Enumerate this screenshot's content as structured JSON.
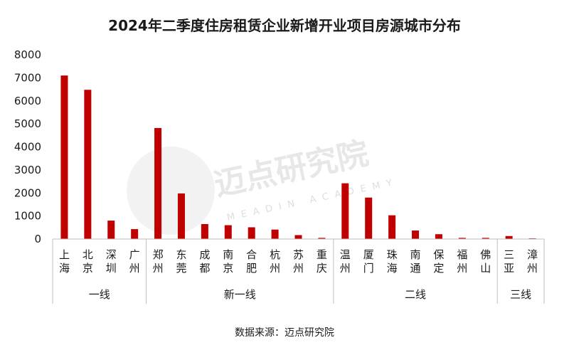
{
  "chart_data": {
    "type": "bar",
    "title": "2024年二季度住房租赁企业新增开业项目房源城市分布",
    "categories": [
      "上海",
      "北京",
      "深圳",
      "广州",
      "郑州",
      "东莞",
      "成都",
      "南京",
      "合肥",
      "杭州",
      "苏州",
      "重庆",
      "温州",
      "厦门",
      "珠海",
      "南通",
      "保定",
      "福州",
      "佛山",
      "三亚",
      "漳州"
    ],
    "values": [
      7100,
      6480,
      800,
      430,
      4820,
      1980,
      650,
      600,
      510,
      410,
      170,
      50,
      2420,
      1800,
      1030,
      370,
      210,
      50,
      50,
      130,
      30
    ],
    "groups": [
      {
        "label": "一线",
        "start": 0,
        "end": 3
      },
      {
        "label": "新一线",
        "start": 4,
        "end": 11
      },
      {
        "label": "二线",
        "start": 12,
        "end": 18
      },
      {
        "label": "三线",
        "start": 19,
        "end": 20
      }
    ],
    "ylim": [
      0,
      8000
    ],
    "yticks": [
      0,
      1000,
      2000,
      3000,
      4000,
      5000,
      6000,
      7000,
      8000
    ],
    "bar_color": "#c00000",
    "grid": false,
    "source": "数据来源：迈点研究院"
  },
  "watermark": {
    "text": "迈点研究院",
    "sub": "MEADIN ACADEMY"
  }
}
